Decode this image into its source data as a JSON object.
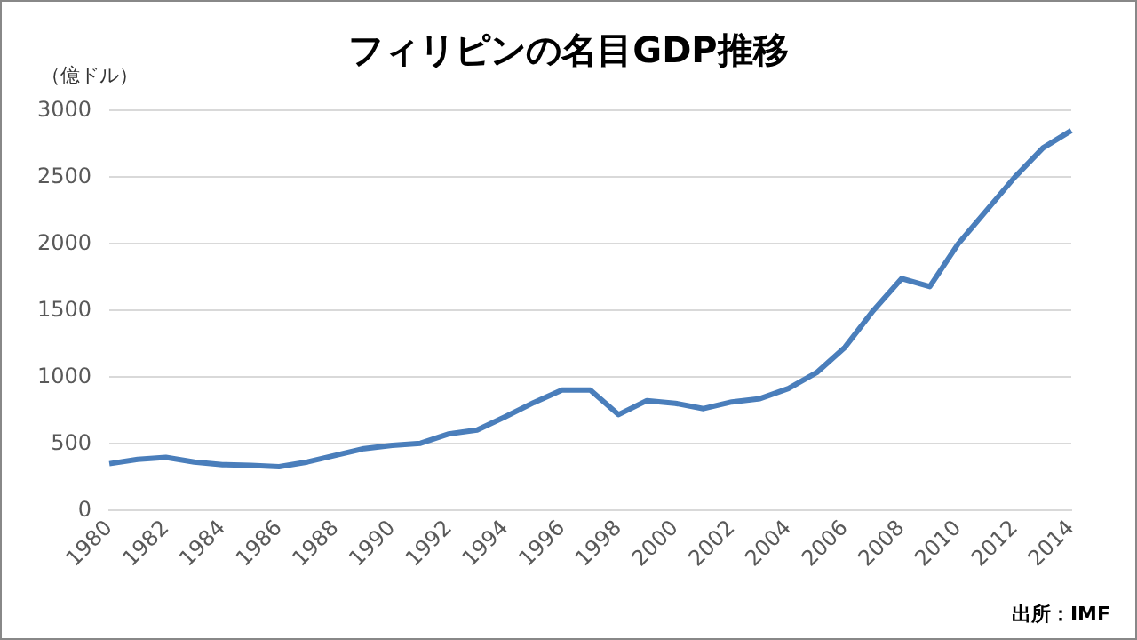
{
  "chart_data": {
    "type": "line",
    "title": "フィリピンの名目GDP推移",
    "ylabel": "（億ドル）",
    "annotations": [
      "出所：IMF"
    ],
    "categories": [
      "1980",
      null,
      "1982",
      null,
      "1984",
      null,
      "1986",
      null,
      "1988",
      null,
      "1990",
      null,
      "1992",
      null,
      "1994",
      null,
      "1996",
      null,
      "1998",
      null,
      "2000",
      null,
      "2002",
      null,
      "2004",
      null,
      "2006",
      null,
      "2008",
      null,
      "2010",
      null,
      "2012",
      null,
      "2014"
    ],
    "series": [
      {
        "color": "#4a7ebb",
        "values": [
          352,
          385,
          400,
          365,
          345,
          340,
          330,
          365,
          415,
          465,
          490,
          505,
          575,
          605,
          705,
          810,
          905,
          905,
          720,
          825,
          805,
          765,
          815,
          840,
          915,
          1035,
          1225,
          1500,
          1740,
          1680,
          2000,
          2250,
          2500,
          2720,
          2850
        ]
      }
    ],
    "ylim": [
      0,
      3000
    ],
    "yticks": [
      0,
      500,
      1000,
      1500,
      2000,
      2500,
      3000
    ],
    "grid": "y",
    "legend": false,
    "marker": "none",
    "line_style": "solid"
  }
}
